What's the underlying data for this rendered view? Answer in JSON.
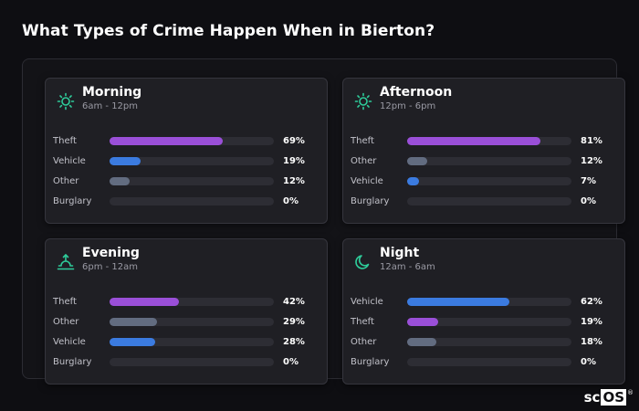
{
  "page": {
    "title": "What Types of Crime Happen When in Bierton?"
  },
  "colors": {
    "theft": "#9a4fd8",
    "vehicle": "#3b7be0",
    "other": "#626c80",
    "icon": "#2ecc9a"
  },
  "brand": {
    "sc": "sc",
    "os": "OS",
    "reg": "®"
  },
  "cards": [
    {
      "name": "Morning",
      "hours": "6am - 12pm",
      "icon": "sun-icon",
      "rows": [
        {
          "label": "Theft",
          "value_text": "69%",
          "pct": 69,
          "kind": "theft"
        },
        {
          "label": "Vehicle",
          "value_text": "19%",
          "pct": 19,
          "kind": "vehicle"
        },
        {
          "label": "Other",
          "value_text": "12%",
          "pct": 12,
          "kind": "other"
        },
        {
          "label": "Burglary",
          "value_text": "0%",
          "pct": 0,
          "kind": "other"
        }
      ]
    },
    {
      "name": "Afternoon",
      "hours": "12pm - 6pm",
      "icon": "sun-icon",
      "rows": [
        {
          "label": "Theft",
          "value_text": "81%",
          "pct": 81,
          "kind": "theft"
        },
        {
          "label": "Other",
          "value_text": "12%",
          "pct": 12,
          "kind": "other"
        },
        {
          "label": "Vehicle",
          "value_text": "7%",
          "pct": 7,
          "kind": "vehicle"
        },
        {
          "label": "Burglary",
          "value_text": "0%",
          "pct": 0,
          "kind": "other"
        }
      ]
    },
    {
      "name": "Evening",
      "hours": "6pm - 12am",
      "icon": "sunset-icon",
      "rows": [
        {
          "label": "Theft",
          "value_text": "42%",
          "pct": 42,
          "kind": "theft"
        },
        {
          "label": "Other",
          "value_text": "29%",
          "pct": 29,
          "kind": "other"
        },
        {
          "label": "Vehicle",
          "value_text": "28%",
          "pct": 28,
          "kind": "vehicle"
        },
        {
          "label": "Burglary",
          "value_text": "0%",
          "pct": 0,
          "kind": "other"
        }
      ]
    },
    {
      "name": "Night",
      "hours": "12am - 6am",
      "icon": "moon-icon",
      "rows": [
        {
          "label": "Vehicle",
          "value_text": "62%",
          "pct": 62,
          "kind": "vehicle"
        },
        {
          "label": "Theft",
          "value_text": "19%",
          "pct": 19,
          "kind": "theft"
        },
        {
          "label": "Other",
          "value_text": "18%",
          "pct": 18,
          "kind": "other"
        },
        {
          "label": "Burglary",
          "value_text": "0%",
          "pct": 0,
          "kind": "other"
        }
      ]
    }
  ]
}
